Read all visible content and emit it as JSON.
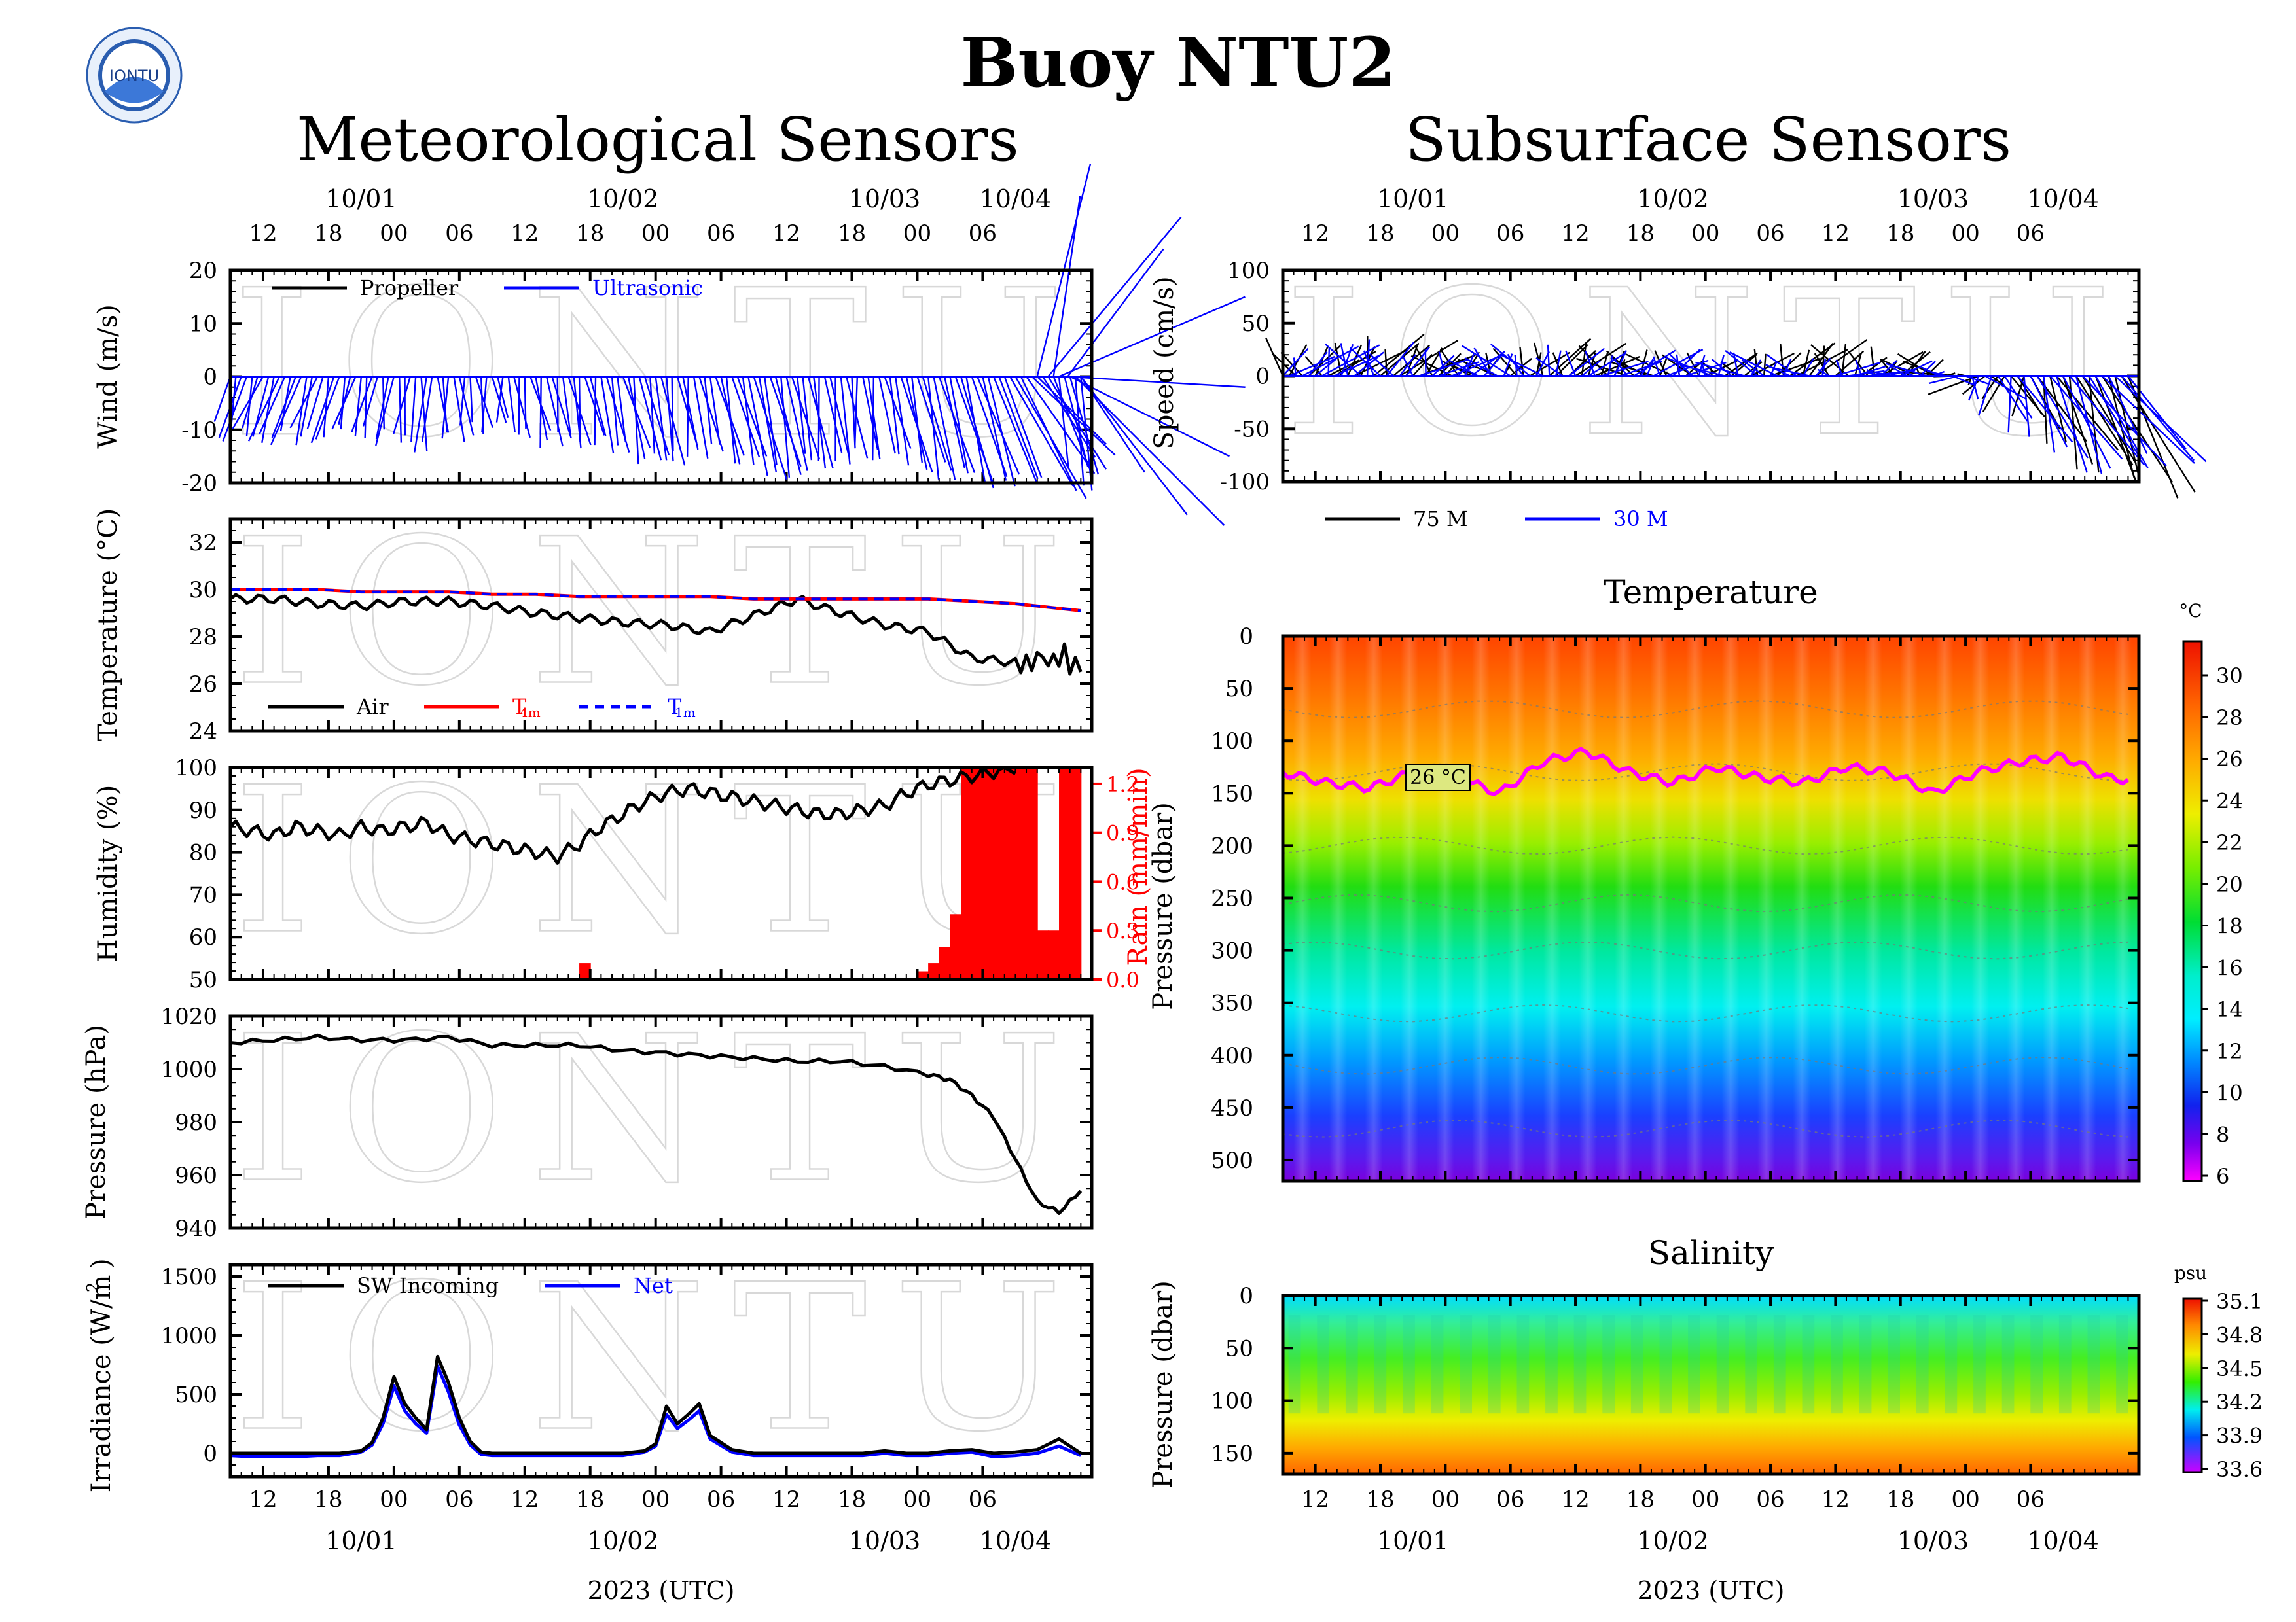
{
  "title": "Buoy NTU2",
  "logo_text": "IONTU",
  "watermark": "IONTU",
  "left_title": "Meteorological Sensors",
  "right_title": "Subsurface Sensors",
  "date_labels": [
    "10/01",
    "10/02",
    "10/03",
    "10/04"
  ],
  "hour_labels": [
    "12",
    "18",
    "00",
    "06",
    "12",
    "18",
    "00",
    "06",
    "12",
    "18",
    "00",
    "06"
  ],
  "xlabel": "2023 (UTC)",
  "colors": {
    "black": "#000000",
    "blue": "#0000ff",
    "red": "#ff0000",
    "magenta": "#ff00ff",
    "grid": "#9a9a9a"
  },
  "chart_data": [
    {
      "id": "wind",
      "type": "line",
      "subtype": "stick-vector",
      "ylabel": "Wind (m/s)",
      "ylim": [
        -20,
        20
      ],
      "yticks": [
        20,
        10,
        0,
        -10,
        -20
      ],
      "legend": [
        {
          "name": "Propeller",
          "color": "#000000"
        },
        {
          "name": "Ultrasonic",
          "color": "#0000ff"
        }
      ],
      "series": [
        {
          "name": "Ultrasonic",
          "color": "#0000ff",
          "x_hours": [
            0,
            2,
            4,
            6,
            8,
            10,
            12,
            14,
            16,
            18,
            20,
            22,
            24,
            26,
            28,
            30,
            32,
            34,
            36,
            38,
            40,
            42,
            44,
            46,
            48,
            50,
            52,
            54,
            56,
            58,
            60,
            62,
            64,
            66,
            68,
            70,
            72,
            74,
            76,
            78
          ],
          "u": [
            -3,
            -3,
            -4,
            -4,
            -3,
            -3,
            -2,
            -2,
            -1,
            -1,
            1,
            1,
            1,
            1,
            2,
            2,
            2,
            2,
            3,
            3,
            2,
            2,
            3,
            4,
            4,
            4,
            3,
            2,
            2,
            1,
            3,
            4,
            4,
            5,
            6,
            6,
            12,
            14,
            4,
            3
          ],
          "v": [
            -10,
            -11,
            -11,
            -12,
            -11,
            -11,
            -10,
            -11,
            -12,
            -13,
            -11,
            -10,
            -9,
            -10,
            -12,
            -12,
            -12,
            -13,
            -14,
            -16,
            -15,
            -14,
            -14,
            -16,
            -18,
            -18,
            -16,
            -16,
            -15,
            -14,
            -15,
            -17,
            -18,
            -19,
            -20,
            -19,
            -22,
            -14,
            -18,
            -20
          ]
        }
      ]
    },
    {
      "id": "temperature",
      "type": "line",
      "ylabel": "Temperature (°C)",
      "ylim": [
        24,
        33
      ],
      "yticks": [
        32,
        30,
        28,
        26,
        24
      ],
      "legend": [
        {
          "name": "Air",
          "color": "#000000"
        },
        {
          "name": "T4m",
          "color": "#ff0000"
        },
        {
          "name": "T1m",
          "color": "#0000ff"
        }
      ],
      "x_hours": [
        0,
        4,
        8,
        12,
        16,
        20,
        24,
        28,
        32,
        36,
        40,
        44,
        48,
        52,
        56,
        60,
        64,
        68,
        72,
        76,
        78
      ],
      "series": [
        {
          "name": "Air",
          "color": "#000000",
          "values": [
            29.6,
            29.6,
            29.4,
            29.3,
            29.5,
            29.5,
            29.3,
            29.0,
            28.8,
            28.6,
            28.5,
            28.2,
            28.9,
            29.6,
            29.0,
            28.5,
            28.2,
            27.1,
            26.9,
            27.1,
            26.8
          ]
        },
        {
          "name": "T4m",
          "color": "#ff0000",
          "values": [
            30.0,
            30.0,
            30.0,
            29.9,
            29.9,
            29.9,
            29.8,
            29.8,
            29.7,
            29.7,
            29.7,
            29.7,
            29.6,
            29.6,
            29.6,
            29.6,
            29.6,
            29.5,
            29.4,
            29.2,
            29.1
          ]
        },
        {
          "name": "T1m",
          "color": "#0000ff",
          "values": [
            30.0,
            30.0,
            30.0,
            29.9,
            29.9,
            29.9,
            29.8,
            29.8,
            29.7,
            29.7,
            29.7,
            29.7,
            29.6,
            29.6,
            29.6,
            29.6,
            29.6,
            29.5,
            29.4,
            29.2,
            29.1
          ]
        }
      ]
    },
    {
      "id": "humidity",
      "type": "line",
      "ylabel": "Humidity (%)",
      "ylim": [
        50,
        100
      ],
      "yticks": [
        100,
        90,
        80,
        70,
        60,
        50
      ],
      "y2label": "Rain (mm/min)",
      "y2lim": [
        0,
        1.3
      ],
      "y2ticks": [
        "1.2",
        "0.9",
        "0.6",
        "0.3",
        "0.0"
      ],
      "x_hours": [
        0,
        2,
        4,
        6,
        8,
        10,
        12,
        14,
        16,
        18,
        20,
        22,
        24,
        26,
        28,
        30,
        32,
        34,
        36,
        38,
        40,
        42,
        44,
        46,
        48,
        50,
        52,
        54,
        56,
        58,
        60,
        62,
        64,
        66,
        68,
        70,
        72
      ],
      "series": [
        {
          "name": "Humidity",
          "color": "#000000",
          "values": [
            86,
            85,
            84,
            86,
            85,
            84,
            86,
            85,
            86,
            87,
            84,
            83,
            82,
            81,
            80,
            79,
            82,
            86,
            89,
            92,
            94,
            95,
            94,
            93,
            92,
            91,
            90,
            89,
            89,
            90,
            91,
            94,
            96,
            97,
            98,
            99,
            100
          ]
        },
        {
          "name": "Rain",
          "color": "#ff0000",
          "axis": "right",
          "x_hours": [
            32,
            63,
            64,
            65,
            66,
            67,
            68,
            69,
            70,
            71,
            72,
            73,
            74,
            75,
            76,
            77
          ],
          "values": [
            0.1,
            0.05,
            0.1,
            0.2,
            0.4,
            1.3,
            1.3,
            1.3,
            1.3,
            1.3,
            1.3,
            1.3,
            0.3,
            0.3,
            1.3,
            1.3
          ]
        }
      ]
    },
    {
      "id": "pressure",
      "type": "line",
      "ylabel": "Pressure (hPa)",
      "ylim": [
        940,
        1020
      ],
      "yticks": [
        1020,
        1000,
        980,
        960,
        940
      ],
      "x_hours": [
        0,
        4,
        8,
        12,
        16,
        20,
        24,
        28,
        32,
        36,
        40,
        44,
        48,
        52,
        56,
        60,
        64,
        66,
        68,
        70,
        72,
        74,
        76,
        78
      ],
      "series": [
        {
          "name": "Pressure",
          "color": "#000000",
          "values": [
            1010,
            1011,
            1012,
            1011,
            1011,
            1012,
            1009,
            1009,
            1009,
            1007,
            1006,
            1005,
            1004,
            1003,
            1003,
            1001,
            998,
            996,
            990,
            982,
            966,
            950,
            946,
            954
          ]
        }
      ]
    },
    {
      "id": "irradiance",
      "type": "line",
      "ylabel": "Irradiance (W/m²)",
      "ylim": [
        -200,
        1600
      ],
      "yticks": [
        1500,
        1000,
        500,
        0
      ],
      "legend": [
        {
          "name": "SW Incoming",
          "color": "#000000"
        },
        {
          "name": "Net",
          "color": "#0000ff"
        }
      ],
      "x_hours": [
        0,
        2,
        4,
        6,
        8,
        10,
        12,
        13,
        14,
        15,
        16,
        17,
        18,
        19,
        20,
        21,
        22,
        23,
        24,
        26,
        28,
        30,
        32,
        34,
        36,
        38,
        39,
        40,
        41,
        42,
        43,
        44,
        46,
        48,
        50,
        52,
        54,
        56,
        58,
        60,
        62,
        64,
        66,
        68,
        70,
        72,
        74,
        76,
        78
      ],
      "series": [
        {
          "name": "SW Incoming",
          "color": "#000000",
          "values": [
            0,
            0,
            0,
            0,
            0,
            0,
            20,
            90,
            300,
            650,
            420,
            300,
            200,
            820,
            600,
            300,
            100,
            10,
            0,
            0,
            0,
            0,
            0,
            0,
            0,
            20,
            80,
            400,
            250,
            330,
            420,
            150,
            30,
            0,
            0,
            0,
            0,
            0,
            0,
            20,
            0,
            0,
            20,
            30,
            0,
            10,
            30,
            120,
            0
          ]
        },
        {
          "name": "Net",
          "color": "#0000ff",
          "values": [
            -20,
            -30,
            -30,
            -30,
            -20,
            -20,
            10,
            70,
            250,
            570,
            360,
            250,
            170,
            740,
            520,
            240,
            70,
            -10,
            -20,
            -20,
            -20,
            -20,
            -20,
            -20,
            -20,
            10,
            60,
            330,
            210,
            280,
            360,
            120,
            10,
            -20,
            -20,
            -20,
            -20,
            -20,
            -20,
            0,
            -20,
            -20,
            0,
            10,
            -30,
            -20,
            0,
            60,
            -20
          ]
        }
      ]
    },
    {
      "id": "currents",
      "type": "line",
      "subtype": "stick-vector",
      "ylabel": "Speed (cm/s)",
      "ylim": [
        -100,
        100
      ],
      "yticks": [
        100,
        50,
        0,
        -50,
        -100
      ],
      "legend": [
        {
          "name": "75 M",
          "color": "#000000"
        },
        {
          "name": "30 M",
          "color": "#0000ff"
        }
      ],
      "series": [
        {
          "name": "75 M",
          "color": "#000000",
          "x_hours": [
            0,
            4,
            8,
            12,
            16,
            20,
            24,
            28,
            32,
            36,
            40,
            44,
            48,
            52,
            56,
            60,
            64,
            68,
            72,
            76
          ],
          "u": [
            -10,
            10,
            15,
            20,
            -10,
            -5,
            10,
            15,
            -15,
            -10,
            5,
            10,
            20,
            -5,
            10,
            -10,
            -15,
            10,
            20,
            25
          ],
          "v": [
            30,
            20,
            35,
            25,
            20,
            15,
            30,
            25,
            20,
            18,
            15,
            20,
            30,
            25,
            20,
            15,
            -10,
            -40,
            -80,
            -100
          ]
        },
        {
          "name": "30 M",
          "color": "#0000ff",
          "x_hours": [
            0,
            4,
            8,
            12,
            16,
            20,
            24,
            28,
            32,
            36,
            40,
            44,
            48,
            52,
            56,
            60,
            64,
            68,
            72,
            76
          ],
          "u": [
            15,
            20,
            -10,
            10,
            15,
            -12,
            -10,
            12,
            10,
            15,
            -15,
            -10,
            -10,
            15,
            5,
            -8,
            5,
            15,
            30,
            40
          ],
          "v": [
            20,
            25,
            30,
            20,
            18,
            22,
            25,
            20,
            18,
            20,
            15,
            18,
            15,
            10,
            8,
            10,
            -20,
            -60,
            -90,
            -80
          ]
        }
      ]
    },
    {
      "id": "temperature_section",
      "type": "heatmap",
      "title": "Temperature",
      "ylabel": "Pressure (dbar)",
      "ylim": [
        520,
        0
      ],
      "yticks": [
        0,
        50,
        100,
        150,
        200,
        250,
        300,
        350,
        400,
        450,
        500
      ],
      "colorbar_unit": "°C",
      "colorbar_ticks": [
        30,
        28,
        26,
        24,
        22,
        20,
        18,
        16,
        14,
        12,
        10,
        8,
        6
      ],
      "contour_label": "26 °C",
      "isotherm_26C_depth": [
        130,
        140,
        145,
        130,
        135,
        150,
        120,
        110,
        130,
        140,
        125,
        135,
        140,
        125,
        130,
        150,
        130,
        120,
        115,
        135,
        140
      ],
      "isotherm_x_hours": [
        0,
        4,
        8,
        12,
        16,
        20,
        24,
        28,
        32,
        36,
        40,
        44,
        48,
        52,
        56,
        60,
        64,
        68,
        72,
        76,
        78
      ]
    },
    {
      "id": "salinity_section",
      "type": "heatmap",
      "title": "Salinity",
      "ylabel": "Pressure (dbar)",
      "ylim": [
        170,
        0
      ],
      "yticks": [
        0,
        50,
        100,
        150
      ],
      "colorbar_unit": "psu",
      "colorbar_ticks": [
        "35.1",
        "34.8",
        "34.5",
        "34.2",
        "33.9",
        "33.6"
      ]
    }
  ]
}
